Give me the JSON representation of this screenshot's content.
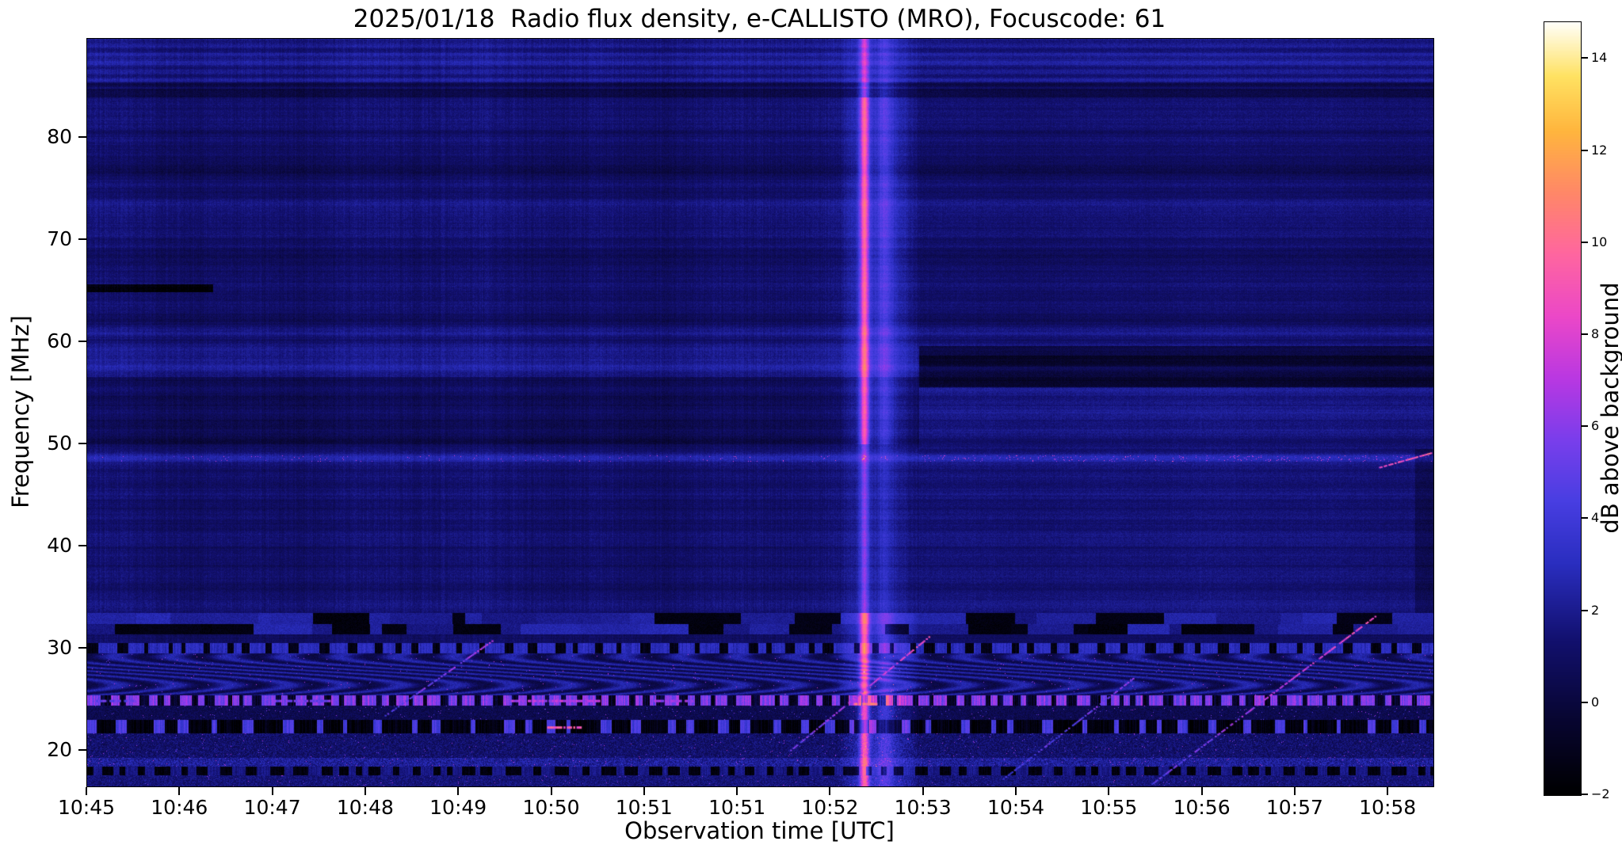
{
  "figure": {
    "background": "#ffffff",
    "frame_color": "#000000",
    "text_color": "#000000"
  },
  "chart_data": {
    "type": "heatmap",
    "subtype": "radio-spectrogram",
    "title": "2025/01/18  Radio flux density, e-CALLISTO (MRO), Focuscode: 61",
    "xlabel": "Observation time [UTC]",
    "ylabel": "Frequency [MHz]",
    "x_tick_labels": [
      "10:45",
      "10:46",
      "10:47",
      "10:48",
      "10:49",
      "10:50",
      "10:51",
      "10:51",
      "10:52",
      "10:53",
      "10:54",
      "10:55",
      "10:56",
      "10:57",
      "10:58"
    ],
    "y_tick_labels": [
      "20",
      "30",
      "40",
      "50",
      "60",
      "70",
      "80"
    ],
    "y_tick_values": [
      20,
      30,
      40,
      50,
      60,
      70,
      80
    ],
    "y_range_mhz": [
      16.5,
      89.7
    ],
    "x_range_tick_units": [
      0,
      14.49
    ],
    "grid": false,
    "legend": "colorbar-right",
    "colorbar": {
      "label": "dB above background",
      "ticks": [
        -2,
        0,
        2,
        4,
        6,
        8,
        10,
        12,
        14
      ],
      "vmin": -2,
      "vmax": 14.8,
      "colormap": "gnuplot2-like: black-blue-violet-magenta-pink-orange-yellow-white",
      "colormap_stops": [
        [
          0.0,
          0,
          0,
          0
        ],
        [
          0.1,
          8,
          6,
          50
        ],
        [
          0.2,
          18,
          16,
          110
        ],
        [
          0.3,
          42,
          46,
          192
        ],
        [
          0.38,
          72,
          62,
          226
        ],
        [
          0.46,
          122,
          62,
          236
        ],
        [
          0.54,
          186,
          56,
          226
        ],
        [
          0.62,
          236,
          72,
          200
        ],
        [
          0.7,
          255,
          102,
          160
        ],
        [
          0.78,
          255,
          136,
          104
        ],
        [
          0.86,
          255,
          182,
          62
        ],
        [
          0.93,
          255,
          226,
          98
        ],
        [
          1.0,
          255,
          255,
          250
        ]
      ]
    },
    "features": {
      "background_level_db": 1.3,
      "rfi_top_mhz": 33.5,
      "notes": [
        "mostly dark-blue background (~0-3 dB) with fine horizontal banding",
        "bright vertical solar radio burst column just before the 10:53 tick spanning all frequencies, with a narrow pink/white core",
        "strong terrestrial RFI below ~33.5 MHz: blocky dark/bright bands 31-33 MHz, dashed carriers near 30 / 22 / 18 MHz, wavy interference 25-29 MHz, bright magenta carrier near 25 MHz",
        "bright narrow channel near 48.6 MHz across the full time range with magenta dashes on the right half",
        "bright band near 58 MHz on the left; dark band 55-59 MHz after the burst",
        "short black streak near 65 MHz during 10:45-10:46",
        "several diagonal ionosonde sweeps rising through 17-33 MHz",
        "bright pink knot near 48.5 MHz at the right edge"
      ],
      "burst": {
        "u_start": 8.08,
        "u_end": 8.95,
        "column_boost_db": 1.4,
        "core_u": 8.36,
        "core_sigma": 0.05,
        "core_boost_db": 7.0,
        "secondary_u": 8.58,
        "secondary_sigma": 0.09,
        "secondary_boost_db": 2.0
      },
      "bright_lines_mhz": [
        {
          "f": 58.2,
          "width": 1.4,
          "boost": 1.15
        },
        {
          "f": 48.6,
          "width": 0.5,
          "boost": 1.6
        },
        {
          "f": 60.9,
          "width": 0.45,
          "boost": 0.5
        },
        {
          "f": 72.5,
          "width": 1.2,
          "boost": 0.35
        },
        {
          "f": 86.8,
          "width": 1.0,
          "boost": 0.4
        }
      ],
      "bands": [
        {
          "f_lo": 50.0,
          "f_hi": 56.6,
          "delta": -0.55,
          "side": "left"
        },
        {
          "f_lo": 55.6,
          "f_hi": 59.6,
          "delta": -1.7,
          "side": "right"
        },
        {
          "f_lo": 57.6,
          "f_hi": 58.7,
          "delta": -0.9,
          "side": "right"
        },
        {
          "f_lo": 49.5,
          "f_hi": 55.5,
          "delta": 0.5,
          "side": "right"
        },
        {
          "f_lo": 33.5,
          "f_hi": 49.0,
          "delta": 0.25,
          "side": "right"
        },
        {
          "f_lo": 84.0,
          "f_hi": 85.4,
          "delta": -1.1,
          "side": "both"
        },
        {
          "f_lo": 66.8,
          "f_hi": 69.2,
          "delta": -0.35,
          "side": "both"
        },
        {
          "f_lo": 76.6,
          "f_hi": 78.2,
          "delta": -0.4,
          "side": "both"
        },
        {
          "f_lo": 61.5,
          "f_hi": 63.8,
          "delta": -0.3,
          "side": "both"
        },
        {
          "f_lo": 33.6,
          "f_hi": 34.7,
          "delta": 0.45,
          "side": "both"
        }
      ],
      "dark_patches": [
        {
          "f_lo": 64.9,
          "f_hi": 65.7,
          "u_lo": 0.0,
          "u_hi": 1.35,
          "delta": -3.0
        },
        {
          "f_lo": 33.5,
          "f_hi": 49.5,
          "u_lo": 14.28,
          "u_hi": 14.6,
          "delta": -0.9
        }
      ],
      "streaks": [
        {
          "u0": 3.2,
          "f0": 23.5,
          "u1": 4.35,
          "f1": 30.8,
          "v0": 4.5,
          "v1": 7.0
        },
        {
          "u0": 7.55,
          "f0": 20.0,
          "u1": 9.05,
          "f1": 31.2,
          "v0": 5.0,
          "v1": 8.5
        },
        {
          "u0": 9.85,
          "f0": 17.3,
          "u1": 11.3,
          "f1": 27.5,
          "v0": 4.0,
          "v1": 6.0
        },
        {
          "u0": 11.45,
          "f0": 16.8,
          "u1": 13.85,
          "f1": 33.2,
          "v0": 4.5,
          "v1": 9.0
        },
        {
          "u0": 13.9,
          "f0": 47.8,
          "u1": 14.45,
          "f1": 49.2,
          "v0": 8.0,
          "v1": 9.5
        }
      ],
      "bright_dashes": [
        {
          "u0": 4.95,
          "u1": 5.3,
          "f": 22.3,
          "v": 9.0
        },
        {
          "u0": 4.55,
          "u1": 5.5,
          "f": 24.9,
          "v": 7.0
        },
        {
          "u0": 2.0,
          "u1": 2.6,
          "f": 24.9,
          "v": 5.5
        },
        {
          "u0": 8.25,
          "u1": 8.5,
          "f": 24.6,
          "v": 10.5
        },
        {
          "u0": 6.1,
          "u1": 6.5,
          "f": 24.9,
          "v": 6.5
        },
        {
          "u0": 0.1,
          "u1": 0.5,
          "f": 24.9,
          "v": 5.0
        }
      ]
    }
  }
}
